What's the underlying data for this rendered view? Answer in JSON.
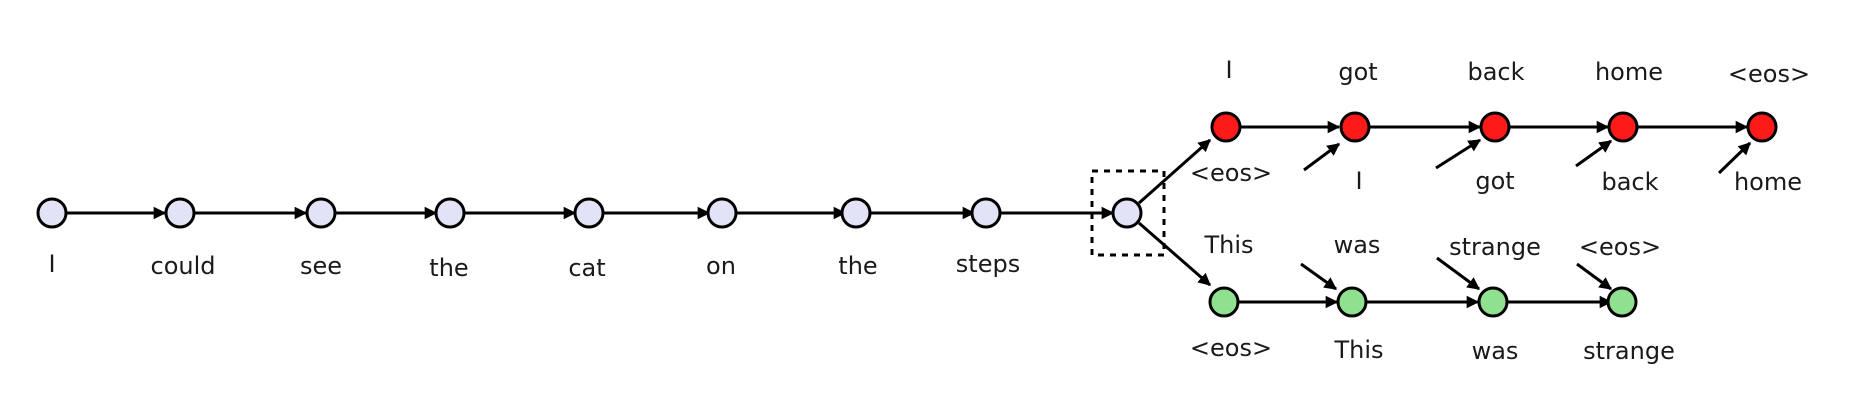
{
  "colors": {
    "encoder_node": "#e3e3f8",
    "decoder_top_node": "#ff1a1a",
    "decoder_bottom_node": "#8fe08f",
    "stroke": "#000000"
  },
  "encoder": {
    "tokens": [
      "I",
      "could",
      "see",
      "the",
      "cat",
      "on",
      "the",
      "steps"
    ]
  },
  "decoder_top": {
    "outputs": [
      "I",
      "got",
      "back",
      "home",
      "<eos>"
    ],
    "inputs": [
      "<eos>",
      "I",
      "got",
      "back",
      "home"
    ]
  },
  "decoder_bottom": {
    "outputs": [
      "This",
      "was",
      "strange",
      "<eos>"
    ],
    "inputs": [
      "<eos>",
      "This",
      "was",
      "strange"
    ]
  }
}
